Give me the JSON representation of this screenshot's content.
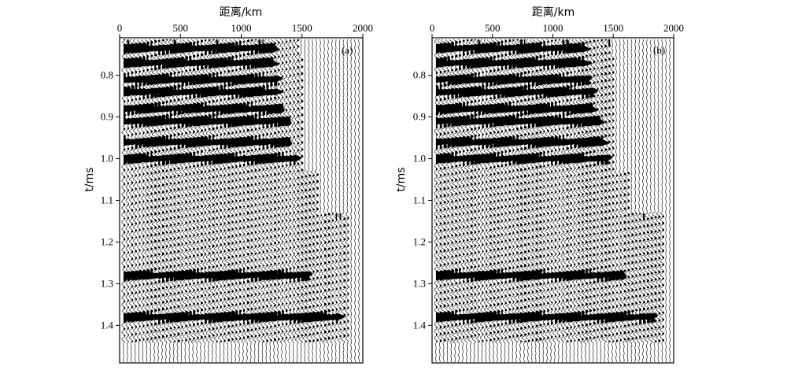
{
  "chart_data": [
    {
      "type": "seismic-wiggle",
      "panel_label": "(a)",
      "xlabel": "距离/km",
      "ylabel": "t/ms",
      "xticks": [
        0,
        500,
        1000,
        1500,
        2000
      ],
      "yticks": [
        "0.8",
        "0.9",
        "1.0",
        "1.1",
        "1.2",
        "1.3",
        "1.4"
      ],
      "xlim": [
        0,
        2000
      ],
      "ylim": [
        1.49,
        0.71
      ],
      "traces": 62,
      "events": [
        {
          "t": 0.735,
          "end_x": 1240
        },
        {
          "t": 0.77,
          "end_x": 1260
        },
        {
          "t": 0.81,
          "end_x": 1290
        },
        {
          "t": 0.84,
          "end_x": 1300
        },
        {
          "t": 0.88,
          "end_x": 1320
        },
        {
          "t": 0.91,
          "end_x": 1370
        },
        {
          "t": 0.96,
          "end_x": 1390
        },
        {
          "t": 1.0,
          "end_x": 1430
        },
        {
          "t": 1.28,
          "end_x": 1550
        },
        {
          "t": 1.38,
          "end_x": 1800
        }
      ]
    },
    {
      "type": "seismic-wiggle",
      "panel_label": "(b)",
      "xlabel": "距离/km",
      "ylabel": "t/ms",
      "xticks": [
        0,
        500,
        1000,
        1500,
        2000
      ],
      "yticks": [
        "0.8",
        "0.9",
        "1.0",
        "1.1",
        "1.2",
        "1.3",
        "1.4"
      ],
      "xlim": [
        0,
        2000
      ],
      "ylim": [
        1.49,
        0.71
      ],
      "traces": 62,
      "events": [
        {
          "t": 0.735,
          "end_x": 1240
        },
        {
          "t": 0.77,
          "end_x": 1260
        },
        {
          "t": 0.81,
          "end_x": 1280
        },
        {
          "t": 0.84,
          "end_x": 1310
        },
        {
          "t": 0.88,
          "end_x": 1330
        },
        {
          "t": 0.91,
          "end_x": 1380
        },
        {
          "t": 0.96,
          "end_x": 1400
        },
        {
          "t": 1.0,
          "end_x": 1440
        },
        {
          "t": 1.28,
          "end_x": 1560
        },
        {
          "t": 1.38,
          "end_x": 1830
        }
      ]
    }
  ]
}
